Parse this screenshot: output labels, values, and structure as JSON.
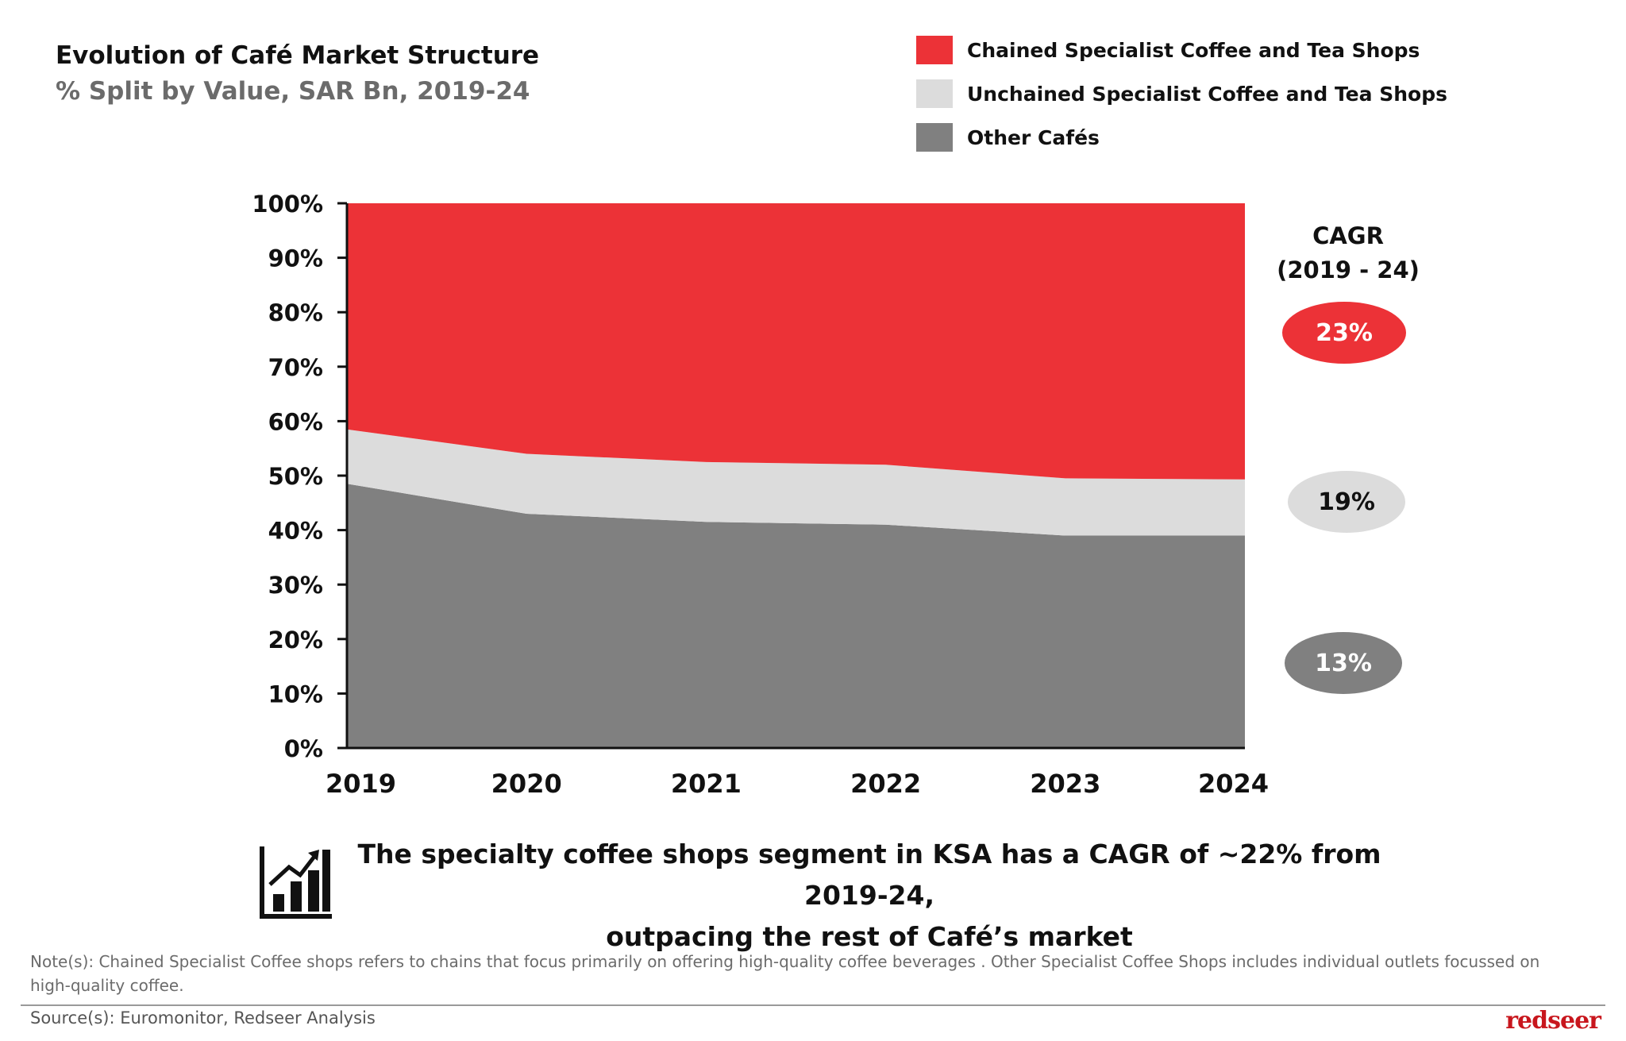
{
  "header": {
    "title": "Evolution of Café Market Structure",
    "subtitle": "% Split by Value, SAR Bn, 2019-24"
  },
  "legend": {
    "items": [
      {
        "label": "Chained Specialist Coffee and Tea Shops",
        "color": "#ec3237"
      },
      {
        "label": "Unchained Specialist Coffee and Tea Shops",
        "color": "#dcdcdc"
      },
      {
        "label": "Other Cafés",
        "color": "#808080"
      }
    ]
  },
  "chart_data": {
    "type": "area",
    "stacked": true,
    "title": "Evolution of Café Market Structure",
    "subtitle": "% Split by Value, SAR Bn, 2019-24",
    "xlabel": "",
    "ylabel": "",
    "categories": [
      "2019",
      "2020",
      "2021",
      "2022",
      "2023",
      "2024"
    ],
    "series": [
      {
        "name": "Other Cafés",
        "color": "#808080",
        "values": [
          48.5,
          43,
          41.5,
          41,
          39,
          39
        ]
      },
      {
        "name": "Unchained Specialist Coffee and Tea Shops",
        "color": "#dcdcdc",
        "values": [
          10,
          11,
          11,
          11,
          10.5,
          10.3
        ]
      },
      {
        "name": "Chained Specialist Coffee and Tea Shops",
        "color": "#ec3237",
        "values": [
          41.5,
          46,
          47.5,
          48,
          50.5,
          50.7
        ]
      }
    ],
    "ylim": [
      0,
      100
    ],
    "yticks": [
      "0%",
      "10%",
      "20%",
      "30%",
      "40%",
      "50%",
      "60%",
      "70%",
      "80%",
      "90%",
      "100%"
    ],
    "grid": false,
    "legend_position": "top-right"
  },
  "cagr": {
    "title_line1": "CAGR",
    "title_line2": "(2019 - 24)",
    "badges": [
      {
        "value": "23%",
        "series": "Chained Specialist Coffee and Tea Shops",
        "bg": "#ec3237",
        "fg": "#ffffff"
      },
      {
        "value": "19%",
        "series": "Unchained Specialist Coffee and Tea Shops",
        "bg": "#dcdcdc",
        "fg": "#111111"
      },
      {
        "value": "13%",
        "series": "Other Cafés",
        "bg": "#808080",
        "fg": "#ffffff"
      }
    ]
  },
  "insight": {
    "icon": "growth-chart-icon",
    "line1": "The specialty coffee shops segment in KSA has a CAGR of ~22% from 2019-24,",
    "line2": "outpacing the rest of Café’s market"
  },
  "footer": {
    "note_line1": "Note(s): Chained Specialist Coffee shops refers to chains that focus primarily on offering high-quality coffee beverages . Other Specialist Coffee Shops includes individual outlets focussed on",
    "note_line2": "high-quality coffee.",
    "source": "Source(s): Euromonitor, Redseer Analysis",
    "logo": "redseer"
  }
}
